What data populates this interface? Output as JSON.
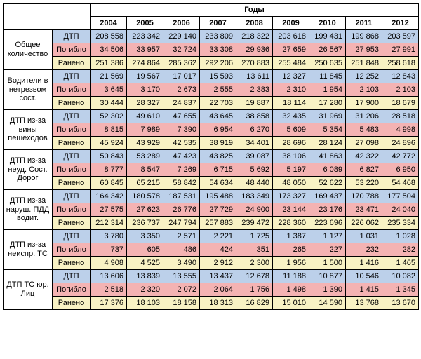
{
  "header": {
    "group": "Годы"
  },
  "years": [
    "2004",
    "2005",
    "2006",
    "2007",
    "2008",
    "2009",
    "2010",
    "2011",
    "2012"
  ],
  "metric_labels": {
    "dtp": "ДТП",
    "dead": "Погибло",
    "wounded": "Ранено"
  },
  "colors": {
    "dtp": "#bcd0ea",
    "dead": "#f4b3b3",
    "wounded": "#f8f2c4",
    "border": "#000000",
    "bg": "#ffffff"
  },
  "font": {
    "family": "Arial",
    "size_pt": 8
  },
  "categories": [
    {
      "name": "Общее количество",
      "rows": {
        "dtp": [
          "208 558",
          "223 342",
          "229 140",
          "233 809",
          "218 322",
          "203 618",
          "199 431",
          "199 868",
          "203 597"
        ],
        "dead": [
          "34 506",
          "33 957",
          "32 724",
          "33 308",
          "29 936",
          "27 659",
          "26 567",
          "27 953",
          "27 991"
        ],
        "wounded": [
          "251 386",
          "274 864",
          "285 362",
          "292 206",
          "270 883",
          "255 484",
          "250 635",
          "251 848",
          "258 618"
        ]
      }
    },
    {
      "name": "Водители в нетрезвом сост.",
      "rows": {
        "dtp": [
          "21 569",
          "19 567",
          "17 017",
          "15 593",
          "13 611",
          "12 327",
          "11 845",
          "12 252",
          "12 843"
        ],
        "dead": [
          "3 645",
          "3 170",
          "2 673",
          "2 555",
          "2 383",
          "2 310",
          "1 954",
          "2 103",
          "2 103"
        ],
        "wounded": [
          "30 444",
          "28 327",
          "24 837",
          "22 703",
          "19 887",
          "18 114",
          "17 280",
          "17 900",
          "18 679"
        ]
      }
    },
    {
      "name": "ДТП из-за вины пешеходов",
      "rows": {
        "dtp": [
          "52 302",
          "49 610",
          "47 655",
          "43 645",
          "38 858",
          "32 435",
          "31 969",
          "31 206",
          "28 518"
        ],
        "dead": [
          "8 815",
          "7 989",
          "7 390",
          "6 954",
          "6 270",
          "5 609",
          "5 354",
          "5 483",
          "4 998"
        ],
        "wounded": [
          "45 924",
          "43 929",
          "42 535",
          "38 919",
          "34 401",
          "28 696",
          "28 124",
          "27 098",
          "24 896"
        ]
      }
    },
    {
      "name": "ДТП из-за неуд. Сост. Дорог",
      "rows": {
        "dtp": [
          "50 843",
          "53 289",
          "47 423",
          "43 825",
          "39 087",
          "38 106",
          "41 863",
          "42 322",
          "42 772"
        ],
        "dead": [
          "8 777",
          "8 547",
          "7 269",
          "6 715",
          "5 692",
          "5 197",
          "6 089",
          "6 827",
          "6 950"
        ],
        "wounded": [
          "60 845",
          "65 215",
          "58 842",
          "54 634",
          "48 440",
          "48 050",
          "52 622",
          "53 220",
          "54 468"
        ]
      }
    },
    {
      "name": "ДТП из-за наруш. ПДД водит.",
      "rows": {
        "dtp": [
          "164 342",
          "180 578",
          "187 531",
          "195 488",
          "183 349",
          "173 327",
          "169 437",
          "170 788",
          "177 504"
        ],
        "dead": [
          "27 575",
          "27 623",
          "26 776",
          "27 729",
          "24 900",
          "23 144",
          "23 176",
          "23 471",
          "24 040"
        ],
        "wounded": [
          "212 314",
          "236 737",
          "247 794",
          "257 883",
          "239 472",
          "228 360",
          "223 696",
          "226 062",
          "235 334"
        ]
      }
    },
    {
      "name": "ДТП из-за неиспр. ТС",
      "rows": {
        "dtp": [
          "3 780",
          "3 350",
          "2 571",
          "2 221",
          "1 725",
          "1 387",
          "1 127",
          "1 031",
          "1 028"
        ],
        "dead": [
          "737",
          "605",
          "486",
          "424",
          "351",
          "265",
          "227",
          "232",
          "282"
        ],
        "wounded": [
          "4 908",
          "4 525",
          "3 490",
          "2 912",
          "2 300",
          "1 956",
          "1 500",
          "1 416",
          "1 465"
        ]
      }
    },
    {
      "name": "ДТП ТС юр. Лиц",
      "rows": {
        "dtp": [
          "13 606",
          "13 839",
          "13 555",
          "13 437",
          "12 678",
          "11 188",
          "10 877",
          "10 546",
          "10 082"
        ],
        "dead": [
          "2 518",
          "2 320",
          "2 072",
          "2 064",
          "1 756",
          "1 498",
          "1 390",
          "1 415",
          "1 345"
        ],
        "wounded": [
          "17 376",
          "18 103",
          "18 158",
          "18 313",
          "16 829",
          "15 010",
          "14 590",
          "13 768",
          "13 670"
        ]
      }
    }
  ]
}
